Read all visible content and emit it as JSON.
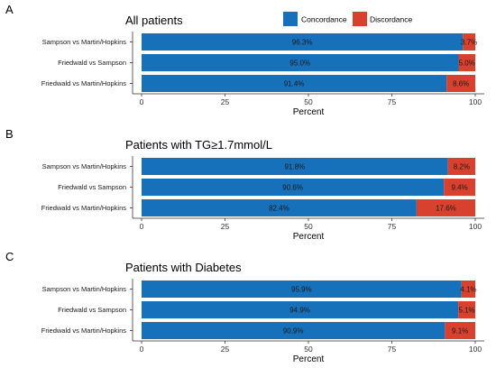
{
  "legend": {
    "items": [
      {
        "label": "Concordance",
        "color": "#1670BA"
      },
      {
        "label": "Discordance",
        "color": "#D9412F"
      }
    ]
  },
  "chart_data": [
    {
      "type": "bar",
      "orientation": "horizontal",
      "stacked": true,
      "panel_letter": "A",
      "title": "All patients",
      "xlabel": "Percent",
      "xlim": [
        0,
        100
      ],
      "xticks": [
        0,
        25,
        50,
        75,
        100
      ],
      "categories": [
        "Sampson vs Martin/Hopkins",
        "Friedwald vs Sampson",
        "Friedwald vs Martin/Hopkins"
      ],
      "series": [
        {
          "name": "Concordance",
          "values": [
            96.3,
            95.0,
            91.4
          ],
          "labels": [
            "96.3%",
            "95.0%",
            "91.4%"
          ]
        },
        {
          "name": "Discordance",
          "values": [
            3.7,
            5.0,
            8.6
          ],
          "labels": [
            "3.7%",
            "5.0%",
            "8.6%"
          ]
        }
      ],
      "legend_position": "top"
    },
    {
      "type": "bar",
      "orientation": "horizontal",
      "stacked": true,
      "panel_letter": "B",
      "title": "Patients with TG≥1.7mmol/L",
      "xlabel": "Percent",
      "xlim": [
        0,
        100
      ],
      "xticks": [
        0,
        25,
        50,
        75,
        100
      ],
      "categories": [
        "Sampson vs Martin/Hopkins",
        "Friedwald vs Sampson",
        "Friedwald vs Martin/Hopkins"
      ],
      "series": [
        {
          "name": "Concordance",
          "values": [
            91.8,
            90.6,
            82.4
          ],
          "labels": [
            "91.8%",
            "90.6%",
            "82.4%"
          ]
        },
        {
          "name": "Discordance",
          "values": [
            8.2,
            9.4,
            17.6
          ],
          "labels": [
            "8.2%",
            "9.4%",
            "17.6%"
          ]
        }
      ]
    },
    {
      "type": "bar",
      "orientation": "horizontal",
      "stacked": true,
      "panel_letter": "C",
      "title": "Patients with Diabetes",
      "xlabel": "Percent",
      "xlim": [
        0,
        100
      ],
      "xticks": [
        0,
        25,
        50,
        75,
        100
      ],
      "categories": [
        "Sampson vs Martin/Hopkins",
        "Friedwald vs Sampson",
        "Friedwald vs Martin/Hopkins"
      ],
      "series": [
        {
          "name": "Concordance",
          "values": [
            95.9,
            94.9,
            90.9
          ],
          "labels": [
            "95.9%",
            "94.9%",
            "90.9%"
          ]
        },
        {
          "name": "Discordance",
          "values": [
            4.1,
            5.1,
            9.1
          ],
          "labels": [
            "4.1%",
            "5.1%",
            "9.1%"
          ]
        }
      ]
    }
  ]
}
